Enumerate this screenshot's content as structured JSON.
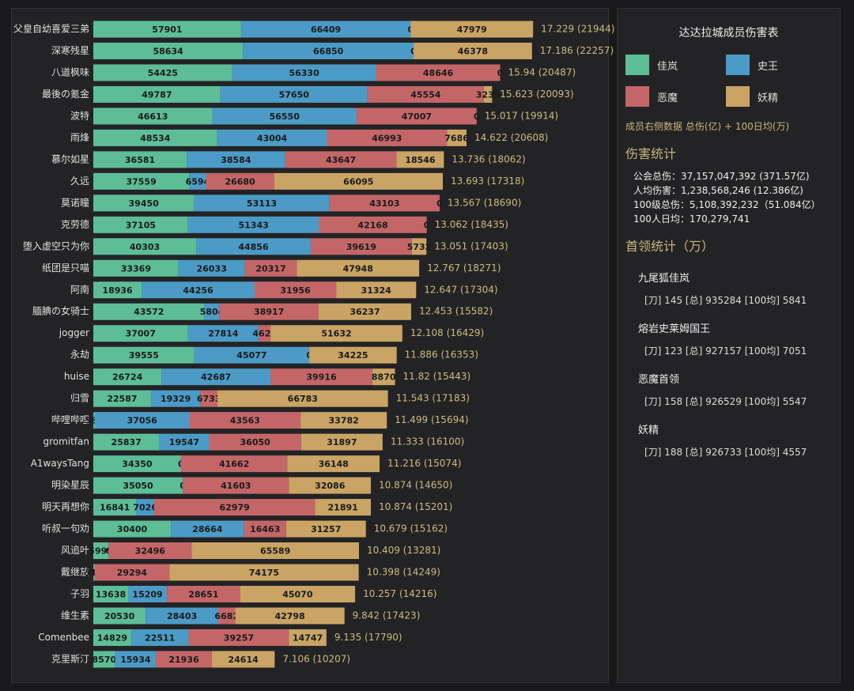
{
  "chart_data": {
    "type": "stacked-bar",
    "title": "达达拉城成员伤害表",
    "subtitle": "成员右侧数据 总伤(亿) + 100日均(万)",
    "categories": [
      "父皇自幼喜爱三弟",
      "深寒残星",
      "八道枫味",
      "最後の氪金",
      "波特",
      "雨烽",
      "慕尔如星",
      "久远",
      "莫诺瞳",
      "克劳德",
      "堕入虚空只为你",
      "纸团是只喵",
      "阿南",
      "腼腆の女骑士",
      "jogger",
      "永劫",
      "huise",
      "归雪",
      "哔哩哔哩",
      "gromitfan",
      "A1waysTang",
      "明染星辰",
      "明天再想你",
      "听叔一句劝",
      "风追叶",
      "戴继放",
      "子羽",
      "维生素",
      "Comenbee",
      "克里斯汀"
    ],
    "series": [
      {
        "name": "佳岚",
        "color": "#5dbd97",
        "values": [
          57901,
          58634,
          54425,
          49787,
          46613,
          48534,
          36581,
          37559,
          39450,
          37105,
          40303,
          33369,
          18936,
          43572,
          37007,
          39555,
          26724,
          22587,
          589,
          25837,
          34350,
          35050,
          16841,
          30400,
          5999,
          511,
          13638,
          20530,
          14829,
          8570
        ]
      },
      {
        "name": "史王",
        "color": "#4b9bc6",
        "values": [
          66409,
          66850,
          56330,
          57650,
          56550,
          43004,
          38584,
          6594,
          53113,
          51343,
          44856,
          26033,
          44256,
          5804,
          27814,
          45077,
          42687,
          19329,
          37056,
          19547,
          0,
          0,
          7026,
          28664,
          0,
          0,
          15209,
          28403,
          22511,
          15934
        ]
      },
      {
        "name": "恶魔",
        "color": "#c46668",
        "values": [
          0,
          0,
          48646,
          45554,
          47007,
          46993,
          43647,
          26680,
          43103,
          42168,
          39619,
          20317,
          31956,
          38917,
          4625,
          0,
          39916,
          6733,
          43563,
          36050,
          41662,
          41603,
          62979,
          16463,
          32496,
          29294,
          28651,
          6682,
          39257,
          21936
        ]
      },
      {
        "name": "妖精",
        "color": "#c9a465",
        "values": [
          47979,
          46378,
          0,
          3239,
          0,
          7686,
          18546,
          66095,
          0,
          0,
          5732,
          47948,
          31324,
          36237,
          51632,
          34225,
          8870,
          66783,
          33782,
          31897,
          36148,
          32086,
          21891,
          31257,
          65589,
          74175,
          45070,
          42798,
          14747,
          24614
        ]
      }
    ],
    "totals": [
      "17.229 (21944)",
      "17.186 (22257)",
      "15.94 (20487)",
      "15.623 (20093)",
      "15.017 (19914)",
      "14.622 (20608)",
      "13.736 (18062)",
      "13.693 (17318)",
      "13.567 (18690)",
      "13.062 (18435)",
      "13.051 (17403)",
      "12.767 (18271)",
      "12.647 (17304)",
      "12.453 (15582)",
      "12.108 (16429)",
      "11.886 (16353)",
      "11.82 (15443)",
      "11.543 (17183)",
      "11.499 (15694)",
      "11.333 (16100)",
      "11.216 (15074)",
      "10.874 (14650)",
      "10.874 (15201)",
      "10.679 (15162)",
      "10.409 (13281)",
      "10.398 (14249)",
      "10.257 (14216)",
      "9.842 (17423)",
      "9.135 (17790)",
      "7.106 (10207)"
    ]
  },
  "panel": {
    "damage": {
      "heading": "伤害统计",
      "lines": [
        "公会总伤：37,157,047,392 (371.57亿)",
        "人均伤害：1,238,568,246 (12.386亿)",
        "100级总伤：5,108,392,232（51.084亿）",
        "100人日均：170,279,741"
      ]
    },
    "bosses": {
      "heading": "首领统计（万）",
      "items": [
        {
          "name": "九尾狐佳岚",
          "stats": "[刀] 145 [总] 935284 [100均] 5841"
        },
        {
          "name": "熔岩史莱姆国王",
          "stats": "[刀] 123 [总] 927157 [100均] 7051"
        },
        {
          "name": "恶魔首领",
          "stats": "[刀] 158 [总] 926529 [100均] 5547"
        },
        {
          "name": "妖精",
          "stats": "[刀] 188 [总] 926733 [100均] 4557"
        }
      ]
    }
  }
}
